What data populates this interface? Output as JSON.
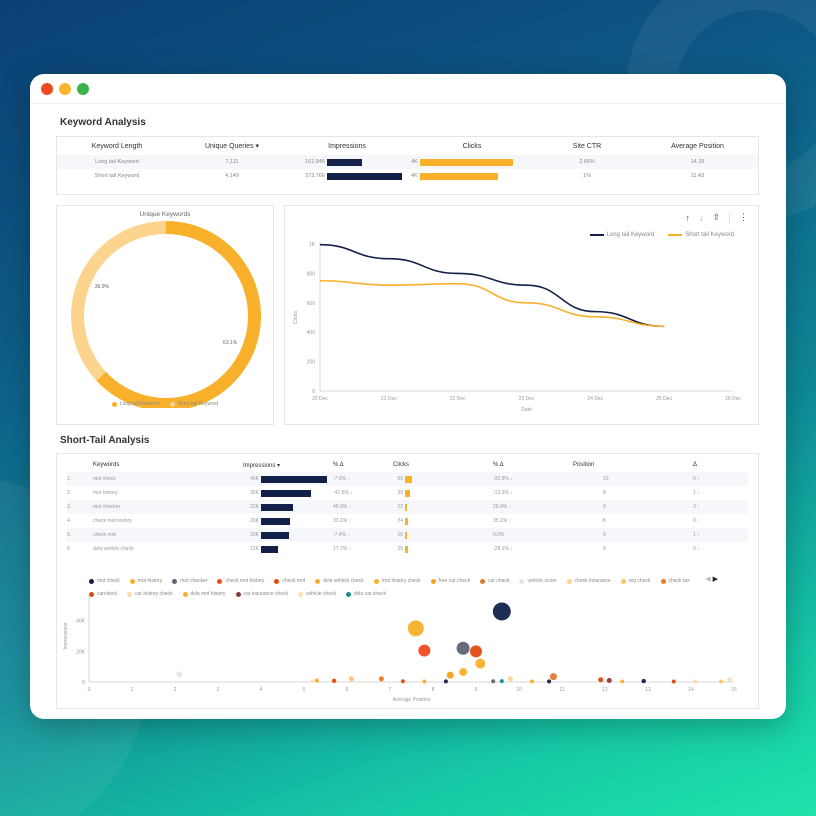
{
  "window": {
    "controls": [
      {
        "name": "close",
        "color": "#f04a23"
      },
      {
        "name": "minimize",
        "color": "#fbb62a"
      },
      {
        "name": "maximize",
        "color": "#3cb34a"
      }
    ]
  },
  "keyword_analysis": {
    "title": "Keyword Analysis",
    "columns": [
      "Keyword Length",
      "Unique Queries ▾",
      "Impressions",
      "Clicks",
      "Site CTR",
      "Average Position"
    ],
    "rows": [
      {
        "keyword_length": "Long tail Keyword",
        "unique_queries": "7,111",
        "impressions": "162,845",
        "impressions_pct": 46,
        "clicks": "4K",
        "clicks_pct": 100,
        "site_ctr": "2.66%",
        "avg_position": "14.39"
      },
      {
        "keyword_length": "Short tail Keyword",
        "unique_queries": "4,149",
        "impressions": "373,766",
        "impressions_pct": 100,
        "clicks": "4K",
        "clicks_pct": 84,
        "site_ctr": "1%",
        "avg_position": "11.43"
      }
    ]
  },
  "unique_keywords": {
    "title": "Unique Keywords",
    "slices": [
      {
        "label": "Long tail Keyword",
        "value": 63.1,
        "display": "63.1%",
        "color": "#f9b02a"
      },
      {
        "label": "Short tail Keyword",
        "value": 36.9,
        "display": "36.9%",
        "color": "#fcd48e"
      }
    ]
  },
  "clicks_chart": {
    "toolbar": {
      "up": "↑",
      "down": "↓",
      "export": "⇧",
      "more": "⋮"
    },
    "legend": [
      {
        "label": "Long tail Keyword",
        "color": "#13214a"
      },
      {
        "label": "Short tail Keyword",
        "color": "#f9b02a"
      }
    ],
    "ylabel": "Clicks",
    "xlabel": "Date"
  },
  "short_tail": {
    "title": "Short-Tail Analysis",
    "columns": [
      "",
      "Keywords",
      "Impressions ▾",
      "% Δ",
      "Clicks",
      "% Δ",
      "Position",
      "Δ"
    ],
    "rows": [
      {
        "rank": "1.",
        "keyword": "mot check",
        "impressions": "46K",
        "imp_pct": 100,
        "imp_delta": "-7.6% ↓",
        "clicks": "53",
        "clicks_pct": 100,
        "clicks_delta": "-20.9% ↓",
        "position": "10",
        "pos_delta": "0 ↓"
      },
      {
        "rank": "2.",
        "keyword": "mot history",
        "impressions": "35K",
        "imp_pct": 76,
        "imp_delta": "-41.5% ↓",
        "clicks": "39",
        "clicks_pct": 74,
        "clicks_delta": "-13.3% ↓",
        "position": "8",
        "pos_delta": "1 ↓"
      },
      {
        "rank": "3.",
        "keyword": "mot checker",
        "impressions": "22K",
        "imp_pct": 48,
        "imp_delta": "45.9% ↑",
        "clicks": "12",
        "clicks_pct": 23,
        "clicks_delta": "29.4% ↑",
        "position": "9",
        "pos_delta": "3 ↑"
      },
      {
        "rank": "4.",
        "keyword": "check mot history",
        "impressions": "20K",
        "imp_pct": 44,
        "imp_delta": "33.1% ↑",
        "clicks": "24",
        "clicks_pct": 45,
        "clicks_delta": "35.1% ↑",
        "position": "8",
        "pos_delta": "0 ↑"
      },
      {
        "rank": "5.",
        "keyword": "check mot",
        "impressions": "20K",
        "imp_pct": 43,
        "imp_delta": "-7.4% ↓",
        "clicks": "16",
        "clicks_pct": 30,
        "clicks_delta": "0.0%",
        "position": "9",
        "pos_delta": "1 ↓"
      },
      {
        "rank": "6.",
        "keyword": "dvla vehicle check",
        "impressions": "12K",
        "imp_pct": 26,
        "imp_delta": "17.7% ↑",
        "clicks": "25",
        "clicks_pct": 47,
        "clicks_delta": "-28.1% ↓",
        "position": "9",
        "pos_delta": "0 ↓"
      }
    ]
  },
  "scatter": {
    "legend_nav": {
      "prev": "◀",
      "next": "▶"
    },
    "legend": [
      {
        "label": "mot check",
        "color": "#13214a"
      },
      {
        "label": "mot history",
        "color": "#f9b02a"
      },
      {
        "label": "mot checker",
        "color": "#5d6475"
      },
      {
        "label": "check mot history",
        "color": "#f04a23"
      },
      {
        "label": "check mot",
        "color": "#e24b10"
      },
      {
        "label": "dvla vehicle check",
        "color": "#f9b02a"
      },
      {
        "label": "mot history check",
        "color": "#f9b02a"
      },
      {
        "label": "free car check",
        "color": "#f6a21c"
      },
      {
        "label": "car check",
        "color": "#e07a30"
      },
      {
        "label": "vehicle score",
        "color": "#e6e6e6"
      },
      {
        "label": "check insurance",
        "color": "#fcd48e"
      },
      {
        "label": "reg check",
        "color": "#fbc36a"
      },
      {
        "label": "check tax",
        "color": "#f07a13"
      },
      {
        "label": "carcheck",
        "color": "#d94a0a"
      },
      {
        "label": "car history check",
        "color": "#f8dcb0"
      },
      {
        "label": "dvla mot history",
        "color": "#f9b02a"
      },
      {
        "label": "car insurance check",
        "color": "#8a3a3a"
      },
      {
        "label": "vehicle check",
        "color": "#fce3b4"
      },
      {
        "label": "dvla car check",
        "color": "#1f8a8e"
      }
    ],
    "ylabel": "Impressions",
    "xlabel": "Average Position"
  },
  "chart_data": [
    {
      "type": "table",
      "title": "Keyword Analysis",
      "columns": [
        "Keyword Length",
        "Unique Queries",
        "Impressions",
        "Clicks",
        "Site CTR",
        "Average Position"
      ],
      "rows": [
        [
          "Long tail Keyword",
          7111,
          162845,
          "4K",
          "2.66%",
          14.39
        ],
        [
          "Short tail Keyword",
          4149,
          373766,
          "4K",
          "1%",
          11.43
        ]
      ]
    },
    {
      "type": "pie",
      "title": "Unique Keywords",
      "categories": [
        "Long tail Keyword",
        "Short tail Keyword"
      ],
      "values": [
        63.1,
        36.9
      ],
      "legend_position": "bottom"
    },
    {
      "type": "line",
      "title": "",
      "x": [
        "20 Dec",
        "21 Dec",
        "22 Dec",
        "23 Dec",
        "24 Dec",
        "25 Dec"
      ],
      "x_ticks": [
        "20 Dec",
        "21 Dec",
        "22 Dec",
        "23 Dec",
        "24 Dec",
        "25 Dec",
        "26 Dec"
      ],
      "series": [
        {
          "name": "Long tail Keyword",
          "values": [
            995,
            900,
            800,
            720,
            540,
            440
          ]
        },
        {
          "name": "Short tail Keyword",
          "values": [
            750,
            720,
            730,
            600,
            505,
            440
          ]
        }
      ],
      "xlabel": "Date",
      "ylabel": "Clicks",
      "y_ticks": [
        "0",
        "200",
        "400",
        "600",
        "800",
        "1K"
      ],
      "ylim": [
        0,
        1000
      ],
      "grid": false,
      "legend_position": "top-right"
    },
    {
      "type": "scatter",
      "title": "",
      "xlabel": "Average Position",
      "ylabel": "Impressions",
      "x_ticks": [
        0,
        1,
        2,
        3,
        4,
        5,
        6,
        7,
        8,
        9,
        10,
        11,
        12,
        13,
        14,
        15
      ],
      "y_ticks": [
        "0",
        "20K",
        "40K",
        "60K"
      ],
      "xlim": [
        0,
        15
      ],
      "ylim": [
        0,
        60000
      ],
      "points": [
        {
          "name": "mot check",
          "x": 9.6,
          "y": 46000,
          "r": 9,
          "color": "#13214a"
        },
        {
          "name": "mot history",
          "x": 7.6,
          "y": 35000,
          "r": 8,
          "color": "#f9b02a"
        },
        {
          "name": "mot checker",
          "x": 8.7,
          "y": 22000,
          "r": 6.5,
          "color": "#5d6475"
        },
        {
          "name": "check mot history",
          "x": 7.8,
          "y": 20500,
          "r": 6,
          "color": "#f04a23"
        },
        {
          "name": "check mot",
          "x": 9.0,
          "y": 20000,
          "r": 6,
          "color": "#e24b10"
        },
        {
          "name": "dvla vehicle check",
          "x": 9.1,
          "y": 12000,
          "r": 5,
          "color": "#f9b02a"
        },
        {
          "name": "mot history check",
          "x": 8.7,
          "y": 6500,
          "r": 4,
          "color": "#f9b02a"
        },
        {
          "name": "free car check",
          "x": 8.4,
          "y": 4500,
          "r": 3.5,
          "color": "#f6a21c"
        },
        {
          "name": "car check",
          "x": 10.8,
          "y": 3500,
          "r": 3.5,
          "color": "#e07a30"
        },
        {
          "name": "vehicle score",
          "x": 2.1,
          "y": 5000,
          "r": 3,
          "color": "#e6e6e6"
        },
        {
          "name": "check insurance",
          "x": 9.8,
          "y": 2000,
          "r": 2.5,
          "color": "#fcd48e"
        },
        {
          "name": "reg check",
          "x": 6.1,
          "y": 2000,
          "r": 2.5,
          "color": "#fbc36a"
        },
        {
          "name": "check tax",
          "x": 6.8,
          "y": 2000,
          "r": 2.5,
          "color": "#f07a13"
        },
        {
          "name": "carcheck",
          "x": 11.9,
          "y": 1500,
          "r": 2.5,
          "color": "#d94a0a"
        },
        {
          "name": "car history check",
          "x": 14.9,
          "y": 1500,
          "r": 2.2,
          "color": "#f8dcb0"
        },
        {
          "name": "dvla mot history",
          "x": 5.3,
          "y": 1000,
          "r": 2,
          "color": "#f9b02a"
        },
        {
          "name": "car insurance check",
          "x": 12.1,
          "y": 1000,
          "r": 2.5,
          "color": "#8a3a3a"
        },
        {
          "name": "vehicle check",
          "x": 5.2,
          "y": 600,
          "r": 2,
          "color": "#fce3b4"
        },
        {
          "name": "dvla car check",
          "x": 9.6,
          "y": 600,
          "r": 2,
          "color": "#1f8a8e"
        },
        {
          "name": "mot check (other)",
          "x": 12.9,
          "y": 600,
          "r": 2.2,
          "color": "#13214a"
        },
        {
          "name": "check mot (other)",
          "x": 5.7,
          "y": 800,
          "r": 2.2,
          "color": "#e24b10"
        },
        {
          "name": "check mot (other 2)",
          "x": 7.3,
          "y": 500,
          "r": 2,
          "color": "#e24b10"
        },
        {
          "name": "mot checker (other)",
          "x": 9.4,
          "y": 500,
          "r": 2,
          "color": "#5d6475"
        },
        {
          "name": "mot check (other 2)",
          "x": 8.3,
          "y": 400,
          "r": 2,
          "color": "#13214a"
        },
        {
          "name": "mot check (other 3)",
          "x": 10.7,
          "y": 400,
          "r": 2,
          "color": "#13214a"
        },
        {
          "name": "carcheck (other)",
          "x": 13.6,
          "y": 300,
          "r": 2,
          "color": "#d94a0a"
        },
        {
          "name": "mot history (other)",
          "x": 12.4,
          "y": 300,
          "r": 2,
          "color": "#f9b02a"
        },
        {
          "name": "mot history (other 2)",
          "x": 14.7,
          "y": 300,
          "r": 2,
          "color": "#fbc36a"
        },
        {
          "name": "car history check (other)",
          "x": 14.1,
          "y": 300,
          "r": 2,
          "color": "#f8dcb0"
        },
        {
          "name": "mot history (other 3)",
          "x": 10.3,
          "y": 300,
          "r": 2,
          "color": "#f9b02a"
        },
        {
          "name": "mot history (other 4)",
          "x": 7.8,
          "y": 300,
          "r": 2,
          "color": "#f9b02a"
        }
      ]
    }
  ]
}
